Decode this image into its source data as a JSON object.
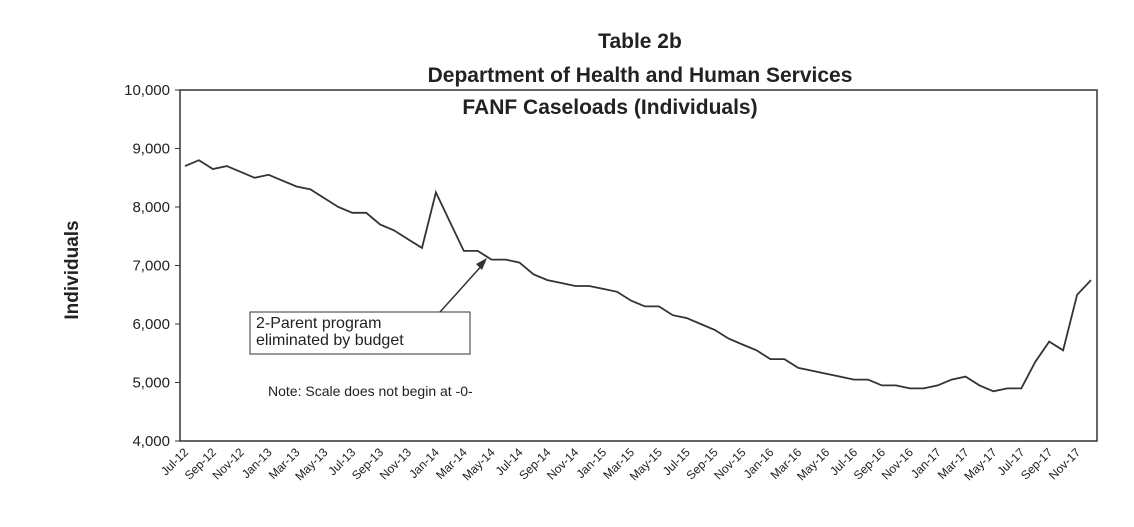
{
  "chart_data": {
    "type": "line",
    "title": [
      "Table 2b",
      "Department of Health and Human Services",
      "FANF Caseloads (Individuals)"
    ],
    "y_label": "Individuals",
    "annotations": {
      "box": [
        "2-Parent program",
        "eliminated by budget"
      ],
      "note": "Note:  Scale does not begin at -0-"
    },
    "categories": [
      "Jul-12",
      null,
      "Sep-12",
      null,
      "Nov-12",
      null,
      "Jan-13",
      null,
      "Mar-13",
      null,
      "May-13",
      null,
      "Jul-13",
      null,
      "Sep-13",
      null,
      "Nov-13",
      null,
      "Jan-14",
      null,
      "Mar-14",
      null,
      "May-14",
      null,
      "Jul-14",
      null,
      "Sep-14",
      null,
      "Nov-14",
      null,
      "Jan-15",
      null,
      "Mar-15",
      null,
      "May-15",
      null,
      "Jul-15",
      null,
      "Sep-15",
      null,
      "Nov-15",
      null,
      "Jan-16",
      null,
      "Mar-16",
      null,
      "May-16",
      null,
      "Jul-16",
      null,
      "Sep-16",
      null,
      "Nov-16",
      null,
      "Jan-17",
      null,
      "Mar-17",
      null,
      "May-17",
      null,
      "Jul-17",
      null,
      "Sep-17",
      null,
      "Nov-17",
      null
    ],
    "series": [
      {
        "name": "FANF Caseloads",
        "color": "#333333",
        "values": [
          8700,
          8800,
          8650,
          8700,
          8600,
          8500,
          8550,
          8450,
          8350,
          8300,
          8150,
          8000,
          7900,
          7900,
          7700,
          7600,
          7450,
          7300,
          8250,
          7750,
          7250,
          7250,
          7100,
          7100,
          7050,
          6850,
          6750,
          6700,
          6650,
          6650,
          6600,
          6550,
          6400,
          6300,
          6300,
          6150,
          6100,
          6000,
          5900,
          5750,
          5650,
          5550,
          5400,
          5400,
          5250,
          5200,
          5150,
          5100,
          5050,
          5050,
          4950,
          4950,
          4900,
          4900,
          4950,
          5050,
          5100,
          4950,
          4850,
          4900,
          4900,
          5350,
          5700,
          5550,
          6500,
          6750
        ]
      }
    ],
    "ylim": [
      4000,
      10000
    ],
    "yticks": [
      {
        "value": 4000,
        "label": "4,000"
      },
      {
        "value": 5000,
        "label": "5,000"
      },
      {
        "value": 6000,
        "label": "6,000"
      },
      {
        "value": 7000,
        "label": "7,000"
      },
      {
        "value": 8000,
        "label": "8,000"
      },
      {
        "value": 9000,
        "label": "9,000"
      },
      {
        "value": 10000,
        "label": "10,000"
      }
    ]
  }
}
